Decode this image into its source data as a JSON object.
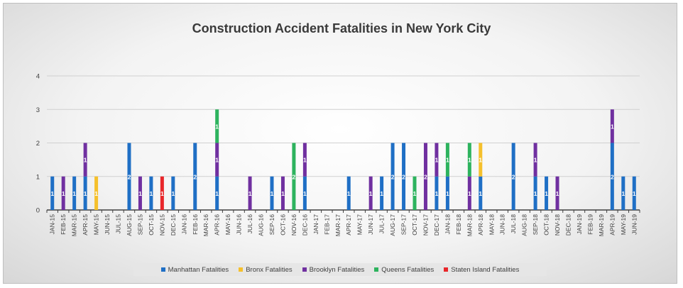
{
  "chart_data": {
    "type": "bar",
    "stacked": true,
    "title": "Construction Accident Fatalities in New York City",
    "xlabel": "",
    "ylabel": "",
    "ylim": [
      0,
      4
    ],
    "yticks": [
      "0",
      "1",
      "2",
      "3",
      "4"
    ],
    "grid": "horizontal",
    "legend_position": "bottom",
    "categories": [
      "JAN-15",
      "FEB-15",
      "MAR-15",
      "APR-15",
      "MAY-15",
      "JUN-15",
      "JUL-15",
      "AUG-15",
      "SEP-15",
      "OCT-15",
      "NOV-15",
      "DEC-15",
      "JAN-16",
      "FEB-16",
      "MAR-16",
      "APR-16",
      "MAY-16",
      "JUN-16",
      "JUL-16",
      "AUG-16",
      "SEP-16",
      "OCT-16",
      "NOV-16",
      "DEC-16",
      "JAN-17",
      "FEB-17",
      "MAR-17",
      "APR-17",
      "MAY-17",
      "JUN-17",
      "JUL-17",
      "AUG-17",
      "SEP-17",
      "OCT-17",
      "NOV-17",
      "DEC-17",
      "JAN-18",
      "FEB-18",
      "MAR-18",
      "APR-18",
      "MAY-18",
      "JUN-18",
      "JUL-18",
      "AUG-18",
      "SEP-18",
      "OCT-18",
      "NOV-18",
      "DEC-18",
      "JAN-19",
      "FEB-19",
      "MAR-19",
      "APR-19",
      "MAY-19",
      "JUN-19"
    ],
    "series": [
      {
        "name": "Manhattan Fatalities",
        "color": "#1f6fc5",
        "values": [
          1,
          0,
          1,
          1,
          0,
          0,
          0,
          2,
          0,
          1,
          0,
          1,
          0,
          2,
          0,
          1,
          0,
          0,
          0,
          0,
          1,
          0,
          0,
          1,
          0,
          0,
          0,
          1,
          0,
          0,
          1,
          2,
          2,
          0,
          0,
          1,
          1,
          0,
          0,
          1,
          0,
          0,
          2,
          0,
          1,
          1,
          0,
          0,
          0,
          0,
          0,
          2,
          1,
          1
        ]
      },
      {
        "name": "Bronx Fatalities",
        "color": "#f5c02c",
        "values": [
          0,
          0,
          0,
          0,
          1,
          0,
          0,
          0,
          0,
          0,
          0,
          0,
          0,
          0,
          0,
          0,
          0,
          0,
          0,
          0,
          0,
          0,
          0,
          0,
          0,
          0,
          0,
          0,
          0,
          0,
          0,
          0,
          0,
          0,
          0,
          0,
          0,
          0,
          0,
          1,
          0,
          0,
          0,
          0,
          0,
          0,
          0,
          0,
          0,
          0,
          0,
          0,
          0,
          0
        ]
      },
      {
        "name": "Brooklyn Fatalities",
        "color": "#7030a0",
        "values": [
          0,
          1,
          0,
          1,
          0,
          0,
          0,
          0,
          1,
          0,
          0,
          0,
          0,
          0,
          0,
          1,
          0,
          0,
          1,
          0,
          0,
          1,
          0,
          1,
          0,
          0,
          0,
          0,
          0,
          1,
          0,
          0,
          0,
          0,
          2,
          1,
          0,
          0,
          1,
          0,
          0,
          0,
          0,
          0,
          1,
          0,
          1,
          0,
          0,
          0,
          0,
          1,
          0,
          0
        ]
      },
      {
        "name": "Queens Fatalities",
        "color": "#2db35e",
        "values": [
          0,
          0,
          0,
          0,
          0,
          0,
          0,
          0,
          0,
          0,
          0,
          0,
          0,
          0,
          0,
          1,
          0,
          0,
          0,
          0,
          0,
          0,
          2,
          0,
          0,
          0,
          0,
          0,
          0,
          0,
          0,
          0,
          0,
          1,
          0,
          0,
          1,
          0,
          1,
          0,
          0,
          0,
          0,
          0,
          0,
          0,
          0,
          0,
          0,
          0,
          0,
          0,
          0,
          0
        ]
      },
      {
        "name": "Staten Island Fatalities",
        "color": "#e8262a",
        "values": [
          0,
          0,
          0,
          0,
          0,
          0,
          0,
          0,
          0,
          0,
          1,
          0,
          0,
          0,
          0,
          0,
          0,
          0,
          0,
          0,
          0,
          0,
          0,
          0,
          0,
          0,
          0,
          0,
          0,
          0,
          0,
          0,
          0,
          0,
          0,
          0,
          0,
          0,
          0,
          0,
          0,
          0,
          0,
          0,
          0,
          0,
          0,
          0,
          0,
          0,
          0,
          0,
          0,
          0
        ]
      }
    ]
  }
}
